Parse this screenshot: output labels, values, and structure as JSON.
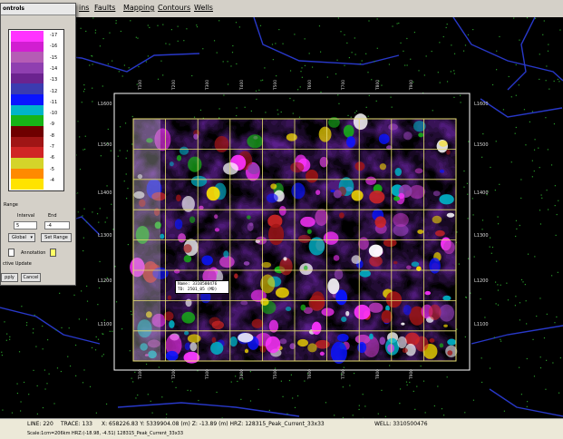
{
  "menubar": {
    "items": [
      "ins",
      "Faults",
      "Mapping",
      "Contours",
      "Wells"
    ]
  },
  "panel": {
    "title": "ontrols",
    "colorbar": {
      "labels": [
        "-17",
        "-16",
        "-15",
        "-14",
        "-13",
        "-12",
        "-11",
        "-10",
        "-9",
        "-8",
        "-7",
        "-6",
        "-5",
        "-4"
      ],
      "colors": [
        "#ff33ff",
        "#d11ed1",
        "#b55cb5",
        "#8f3fb0",
        "#6b238f",
        "#3b3bb0",
        "#0a14ff",
        "#00b4c8",
        "#17b417",
        "#6f0000",
        "#a01515",
        "#d02525",
        "#d4d42a",
        "#ff8a00",
        "#ffe300"
      ]
    },
    "range_label": "Range",
    "interval_label": "Interval",
    "end_label": "End",
    "interval_value": "5",
    "end_value": "-4",
    "global_select": "Global",
    "set_range_button": "Set Range",
    "annotation_label": "Annotation",
    "active_update_label": "ctive Update",
    "apply_button": "pply",
    "cancel_button": "Cancel"
  },
  "map": {
    "y_labels": [
      "L1600",
      "L1500",
      "L1400",
      "L1300",
      "L1200",
      "L1100"
    ],
    "x_labels_top": [
      "T100",
      "T200",
      "T300",
      "T400",
      "T500",
      "T600",
      "T700",
      "T800",
      "T900"
    ],
    "x_labels_bottom": [
      "T100",
      "T200",
      "T300",
      "T400",
      "T500",
      "T600",
      "T700",
      "T800",
      "T900"
    ],
    "tooltip": {
      "line1": "Name:  3310500476",
      "line2": "TD:   2501_05   (MD)"
    }
  },
  "status": {
    "line": "LINE: 220",
    "trace": "TRACE: 133",
    "coords": "X: 658226.83 Y: 5339904.08 (m)  Z: -13.89 (m)  HRZ: 128315_Peak_Current_33x33",
    "well": "WELL: 3310500476",
    "scale": "Scale:1cm=206km HRZ:(-18.98, -4.51) 128315_Peak_Current_33x33"
  },
  "colors": {
    "grid_line": "#e8e070",
    "frame": "#ffffff",
    "background": "#000000",
    "wells": "#2a9a2a",
    "faults": "#2838c8"
  }
}
